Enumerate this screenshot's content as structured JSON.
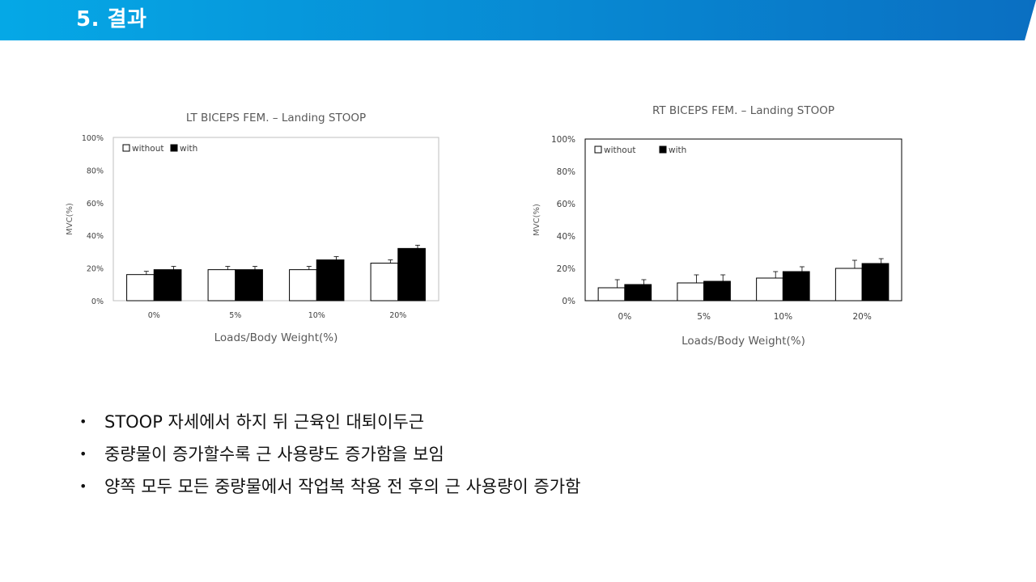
{
  "header": {
    "title": "5. 결과"
  },
  "colors": {
    "header_start": "#05a8e6",
    "header_end": "#0a6fc2",
    "bar_with": "#000000",
    "bar_without": "#ffffff",
    "axis": "#bfbfbf"
  },
  "chart_data": [
    {
      "type": "bar",
      "title": "LT BICEPS FEM. – Landing STOOP",
      "xlabel": "Loads/Body Weight(%)",
      "ylabel": "MVC(%)",
      "categories": [
        "0%",
        "5%",
        "10%",
        "20%"
      ],
      "ylim": [
        0,
        100
      ],
      "yticks": [
        "0%",
        "20%",
        "40%",
        "60%",
        "80%",
        "100%"
      ],
      "plot_border": true,
      "legend": "top-left",
      "series": [
        {
          "name": "without",
          "values": [
            16,
            19,
            19,
            23
          ],
          "errors": [
            2,
            2,
            2,
            2
          ]
        },
        {
          "name": "with",
          "values": [
            19,
            19,
            25,
            32
          ],
          "errors": [
            2,
            2,
            2,
            2
          ]
        }
      ]
    },
    {
      "type": "bar",
      "title": "RT BICEPS FEM. – Landing STOOP",
      "xlabel": "Loads/Body Weight(%)",
      "ylabel": "MVC(%)",
      "categories": [
        "0%",
        "5%",
        "10%",
        "20%"
      ],
      "ylim": [
        0,
        100
      ],
      "yticks": [
        "0%",
        "20%",
        "40%",
        "60%",
        "80%",
        "100%"
      ],
      "plot_border": true,
      "legend": "top-left",
      "series": [
        {
          "name": "without",
          "values": [
            8,
            11,
            14,
            20
          ],
          "errors": [
            5,
            5,
            4,
            5
          ]
        },
        {
          "name": "with",
          "values": [
            10,
            12,
            18,
            23
          ],
          "errors": [
            3,
            4,
            3,
            3
          ]
        }
      ]
    }
  ],
  "bullets": [
    {
      "marker": "•",
      "text": "STOOP 자세에서 하지 뒤 근육인 대퇴이두근"
    },
    {
      "marker": "•",
      "text": "중량물이 증가할수록 근 사용량도 증가함을 보임"
    },
    {
      "marker": "•",
      "text": "양쪽 모두 모든 중량물에서 작업복 착용 전 후의 근 사용량이 증가함"
    }
  ]
}
